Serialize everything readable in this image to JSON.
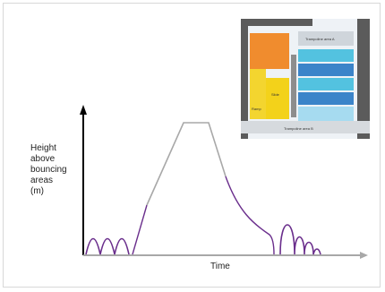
{
  "diagram": {
    "y_axis_label": "Height\nabove\nbouncing\nareas\n(m)",
    "x_axis_label": "Time"
  },
  "inset": {
    "labels": {
      "top_right": "Trampoline area A",
      "small_tag": "Slide",
      "left_tag": "Ramp",
      "bottom": "Trampoline area B"
    }
  },
  "colors": {
    "axis": "#000000",
    "curve_purple": "#6a2e8c",
    "curve_gray": "#a8a8a8",
    "inset_dark": "#5b5b5b",
    "inset_orange": "#f08c2e",
    "inset_yellow": "#f3d21a",
    "inset_blue": "#3b84c9",
    "inset_cyan": "#53c2e0"
  }
}
